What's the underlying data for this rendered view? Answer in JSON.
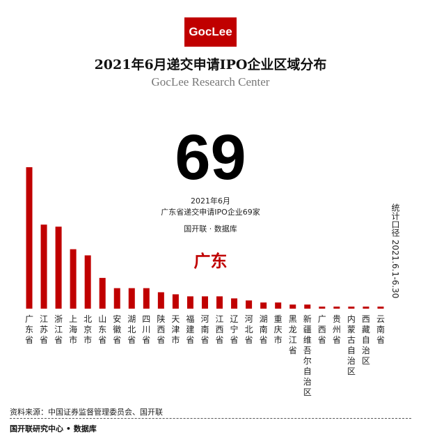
{
  "logo_text": "GocLee",
  "title": "2021年6月递交申请IPO企业区域分布",
  "subtitle": "GocLee Research Center",
  "big_number": "69",
  "month_label": "2021年6月",
  "count_line": "广东省递交申请IPO企业69家",
  "database_label": "国开联 · 数据库",
  "highlight_label": "广东",
  "side_label": "统计口径  2021.6.1-6.30",
  "source": "资料来源：中国证券监督管理委员会、国开联",
  "footer": "国开联研究中心 • 数据库",
  "colors": {
    "bar": "#c00000",
    "brand": "#c00000"
  },
  "chart_data": {
    "type": "bar",
    "categories": [
      "广东省",
      "江苏省",
      "浙江省",
      "上海市",
      "北京市",
      "山东省",
      "安徽省",
      "湖北省",
      "四川省",
      "陕西省",
      "天津市",
      "福建省",
      "河南省",
      "江西省",
      "辽宁省",
      "河北省",
      "湖南省",
      "重庆市",
      "黑龙江省",
      "新疆维吾尔自治区",
      "广西省",
      "贵州省",
      "内蒙古自治区",
      "西藏自治区",
      "云南省"
    ],
    "values": [
      69,
      41,
      40,
      29,
      26,
      15,
      10,
      10,
      10,
      8,
      7,
      6,
      6,
      6,
      5,
      4,
      3,
      3,
      2,
      2,
      1,
      1,
      1,
      1,
      1
    ],
    "title": "",
    "xlabel": "",
    "ylabel": "",
    "ylim": [
      0,
      69
    ],
    "grid": false,
    "legend": "none"
  }
}
